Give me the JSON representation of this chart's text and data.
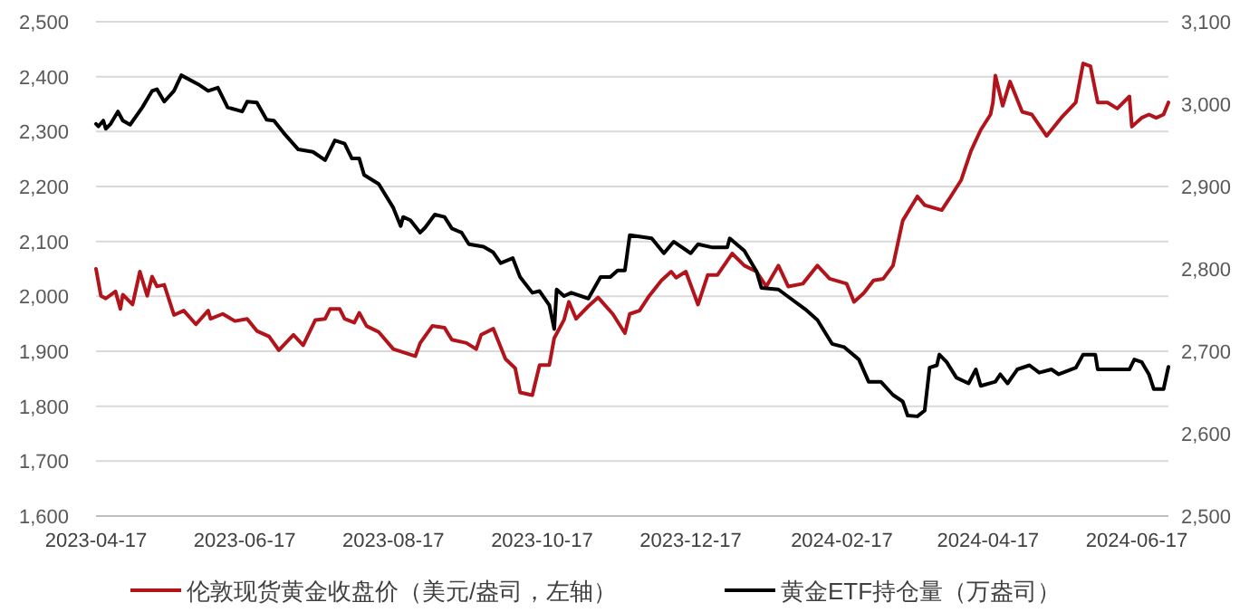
{
  "chart_data": {
    "type": "line",
    "xlim": [
      "2023-04-17",
      "2024-06-30"
    ],
    "xticks": [
      "2023-04-17",
      "2023-06-17",
      "2023-08-17",
      "2023-10-17",
      "2023-12-17",
      "2024-02-17",
      "2024-04-17",
      "2024-06-17"
    ],
    "ylim": [
      1600,
      2500
    ],
    "yticks": [
      {
        "value": 1600,
        "label": "1,600"
      },
      {
        "value": 1700,
        "label": "1,700"
      },
      {
        "value": 1800,
        "label": "1,800"
      },
      {
        "value": 1900,
        "label": "1,900"
      },
      {
        "value": 2000,
        "label": "2,000"
      },
      {
        "value": 2100,
        "label": "2,100"
      },
      {
        "value": 2200,
        "label": "2,200"
      },
      {
        "value": 2300,
        "label": "2,300"
      },
      {
        "value": 2400,
        "label": "2,400"
      },
      {
        "value": 2500,
        "label": "2,500"
      }
    ],
    "y2lim": [
      2500,
      3100
    ],
    "y2ticks": [
      {
        "value": 2500,
        "label": "2,500"
      },
      {
        "value": 2600,
        "label": "2,600"
      },
      {
        "value": 2700,
        "label": "2,700"
      },
      {
        "value": 2800,
        "label": "2,800"
      },
      {
        "value": 2900,
        "label": "2,900"
      },
      {
        "value": 3000,
        "label": "3,000"
      },
      {
        "value": 3100,
        "label": "3,100"
      }
    ],
    "grid": "y",
    "legend": "bottom",
    "series": [
      {
        "name": "伦敦现货黄金收盘价（美元/盎司，左轴）",
        "color": "#b2141c",
        "x": [
          "2023-04-17",
          "2023-04-19",
          "2023-04-21",
          "2023-04-25",
          "2023-04-27",
          "2023-04-28",
          "2023-05-02",
          "2023-05-05",
          "2023-05-08",
          "2023-05-10",
          "2023-05-12",
          "2023-05-15",
          "2023-05-19",
          "2023-05-23",
          "2023-05-28",
          "2023-06-02",
          "2023-06-03",
          "2023-06-08",
          "2023-06-13",
          "2023-06-18",
          "2023-06-22",
          "2023-06-27",
          "2023-07-01",
          "2023-07-07",
          "2023-07-11",
          "2023-07-16",
          "2023-07-20",
          "2023-07-22",
          "2023-07-26",
          "2023-07-28",
          "2023-08-01",
          "2023-08-03",
          "2023-08-06",
          "2023-08-11",
          "2023-08-17",
          "2023-08-26",
          "2023-08-28",
          "2023-09-02",
          "2023-09-07",
          "2023-09-10",
          "2023-09-16",
          "2023-09-20",
          "2023-09-22",
          "2023-09-27",
          "2023-10-02",
          "2023-10-06",
          "2023-10-08",
          "2023-10-13",
          "2023-10-16",
          "2023-10-20",
          "2023-10-22",
          "2023-10-26",
          "2023-10-28",
          "2023-10-31",
          "2023-11-05",
          "2023-11-09",
          "2023-11-11",
          "2023-11-15",
          "2023-11-20",
          "2023-11-22",
          "2023-11-26",
          "2023-11-30",
          "2023-12-05",
          "2023-12-09",
          "2023-12-11",
          "2023-12-15",
          "2023-12-20",
          "2023-12-24",
          "2023-12-28",
          "2024-01-03",
          "2024-01-08",
          "2024-01-13",
          "2024-01-17",
          "2024-01-22",
          "2024-01-26",
          "2024-02-01",
          "2024-02-07",
          "2024-02-12",
          "2024-02-19",
          "2024-02-22",
          "2024-02-26",
          "2024-03-01",
          "2024-03-05",
          "2024-03-09",
          "2024-03-13",
          "2024-03-19",
          "2024-03-22",
          "2024-03-29",
          "2024-04-01",
          "2024-04-06",
          "2024-04-10",
          "2024-04-14",
          "2024-04-18",
          "2024-04-19",
          "2024-04-20",
          "2024-04-23",
          "2024-04-26",
          "2024-05-01",
          "2024-05-05",
          "2024-05-11",
          "2024-05-17",
          "2024-05-23",
          "2024-05-26",
          "2024-05-29",
          "2024-06-01",
          "2024-06-05",
          "2024-06-09",
          "2024-06-14",
          "2024-06-15",
          "2024-06-19",
          "2024-06-22",
          "2024-06-25",
          "2024-06-28",
          "2024-06-30"
        ],
        "values": [
          2050,
          2001,
          1996,
          2009,
          1977,
          2003,
          1985,
          2045,
          2001,
          2036,
          2018,
          2021,
          1966,
          1974,
          1949,
          1974,
          1959,
          1968,
          1955,
          1959,
          1937,
          1927,
          1902,
          1930,
          1911,
          1957,
          1959,
          1977,
          1977,
          1959,
          1952,
          1970,
          1946,
          1935,
          1904,
          1891,
          1915,
          1946,
          1943,
          1921,
          1915,
          1904,
          1930,
          1941,
          1886,
          1869,
          1825,
          1820,
          1875,
          1875,
          1924,
          1957,
          1990,
          1959,
          1982,
          1998,
          1988,
          1968,
          1933,
          1968,
          1974,
          2001,
          2029,
          2045,
          2034,
          2045,
          1985,
          2039,
          2039,
          2078,
          2056,
          2045,
          2018,
          2056,
          2018,
          2023,
          2056,
          2032,
          2023,
          1990,
          2006,
          2029,
          2032,
          2056,
          2138,
          2182,
          2166,
          2157,
          2177,
          2212,
          2265,
          2303,
          2331,
          2353,
          2402,
          2347,
          2391,
          2336,
          2331,
          2292,
          2325,
          2353,
          2424,
          2419,
          2353,
          2353,
          2342,
          2364,
          2309,
          2325,
          2331,
          2325,
          2331,
          2353
        ]
      },
      {
        "name": "黄金ETF持仓量（万盎司）",
        "color": "#000000",
        "axis": "y2",
        "x": [
          "2023-04-17",
          "2023-04-18",
          "2023-04-20",
          "2023-04-21",
          "2023-04-23",
          "2023-04-26",
          "2023-04-28",
          "2023-05-01",
          "2023-05-06",
          "2023-05-10",
          "2023-05-12",
          "2023-05-15",
          "2023-05-19",
          "2023-05-22",
          "2023-05-29",
          "2023-06-02",
          "2023-06-06",
          "2023-06-10",
          "2023-06-16",
          "2023-06-18",
          "2023-06-22",
          "2023-06-26",
          "2023-06-29",
          "2023-07-03",
          "2023-07-09",
          "2023-07-15",
          "2023-07-20",
          "2023-07-24",
          "2023-07-28",
          "2023-07-31",
          "2023-08-03",
          "2023-08-05",
          "2023-08-11",
          "2023-08-17",
          "2023-08-20",
          "2023-08-21",
          "2023-08-24",
          "2023-08-28",
          "2023-08-30",
          "2023-09-03",
          "2023-09-07",
          "2023-09-10",
          "2023-09-14",
          "2023-09-17",
          "2023-09-23",
          "2023-09-27",
          "2023-09-30",
          "2023-10-05",
          "2023-10-08",
          "2023-10-13",
          "2023-10-16",
          "2023-10-20",
          "2023-10-22",
          "2023-10-23",
          "2023-10-26",
          "2023-10-29",
          "2023-11-05",
          "2023-11-10",
          "2023-11-14",
          "2023-11-17",
          "2023-11-20",
          "2023-11-22",
          "2023-12-01",
          "2023-12-06",
          "2023-12-10",
          "2023-12-17",
          "2023-12-20",
          "2023-12-26",
          "2024-01-01",
          "2024-01-02",
          "2024-01-08",
          "2024-01-13",
          "2024-01-15",
          "2024-01-22",
          "2024-01-27",
          "2024-02-02",
          "2024-02-07",
          "2024-02-13",
          "2024-02-18",
          "2024-02-24",
          "2024-02-28",
          "2024-03-04",
          "2024-03-09",
          "2024-03-13",
          "2024-03-15",
          "2024-03-19",
          "2024-03-22",
          "2024-03-24",
          "2024-03-27",
          "2024-03-28",
          "2024-03-31",
          "2024-04-04",
          "2024-04-09",
          "2024-04-12",
          "2024-04-14",
          "2024-04-20",
          "2024-04-22",
          "2024-04-25",
          "2024-04-29",
          "2024-05-04",
          "2024-05-08",
          "2024-05-13",
          "2024-05-16",
          "2024-05-23",
          "2024-05-26",
          "2024-05-31",
          "2024-06-01",
          "2024-06-14",
          "2024-06-16",
          "2024-06-19",
          "2024-06-22",
          "2024-06-24",
          "2024-06-28",
          "2024-06-30"
        ],
        "values": [
          2976,
          2973,
          2980,
          2970,
          2976,
          2991,
          2980,
          2975,
          2996,
          3016,
          3018,
          3003,
          3016,
          3035,
          3024,
          3016,
          3020,
          2996,
          2991,
          3003,
          3002,
          2981,
          2980,
          2965,
          2945,
          2942,
          2932,
          2956,
          2952,
          2934,
          2934,
          2914,
          2903,
          2874,
          2852,
          2863,
          2859,
          2844,
          2850,
          2866,
          2863,
          2849,
          2844,
          2830,
          2827,
          2820,
          2807,
          2813,
          2790,
          2771,
          2773,
          2756,
          2727,
          2775,
          2767,
          2771,
          2764,
          2790,
          2790,
          2798,
          2798,
          2841,
          2837,
          2819,
          2833,
          2819,
          2830,
          2826,
          2826,
          2837,
          2822,
          2797,
          2777,
          2775,
          2764,
          2751,
          2738,
          2709,
          2705,
          2690,
          2663,
          2663,
          2647,
          2639,
          2622,
          2621,
          2628,
          2680,
          2683,
          2696,
          2687,
          2668,
          2661,
          2678,
          2658,
          2663,
          2672,
          2661,
          2678,
          2683,
          2674,
          2678,
          2672,
          2680,
          2696,
          2696,
          2678,
          2678,
          2690,
          2687,
          2672,
          2654,
          2654,
          2681
        ]
      }
    ]
  }
}
